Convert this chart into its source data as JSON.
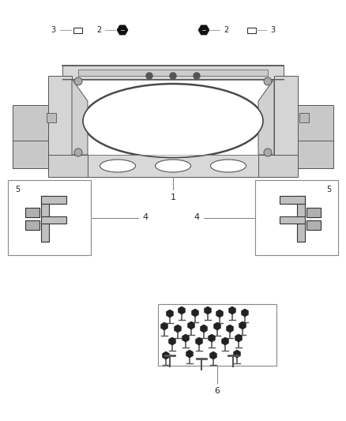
{
  "bg_color": "#ffffff",
  "fig_width": 4.38,
  "fig_height": 5.33,
  "dpi": 100,
  "line_color": "#888888",
  "dark_color": "#333333",
  "text_color": "#222222",
  "box_line_color": "#888888",
  "bracket_fill": "#e0e0e0",
  "bracket_dark": "#555555",
  "bracket_light": "#f0f0f0"
}
